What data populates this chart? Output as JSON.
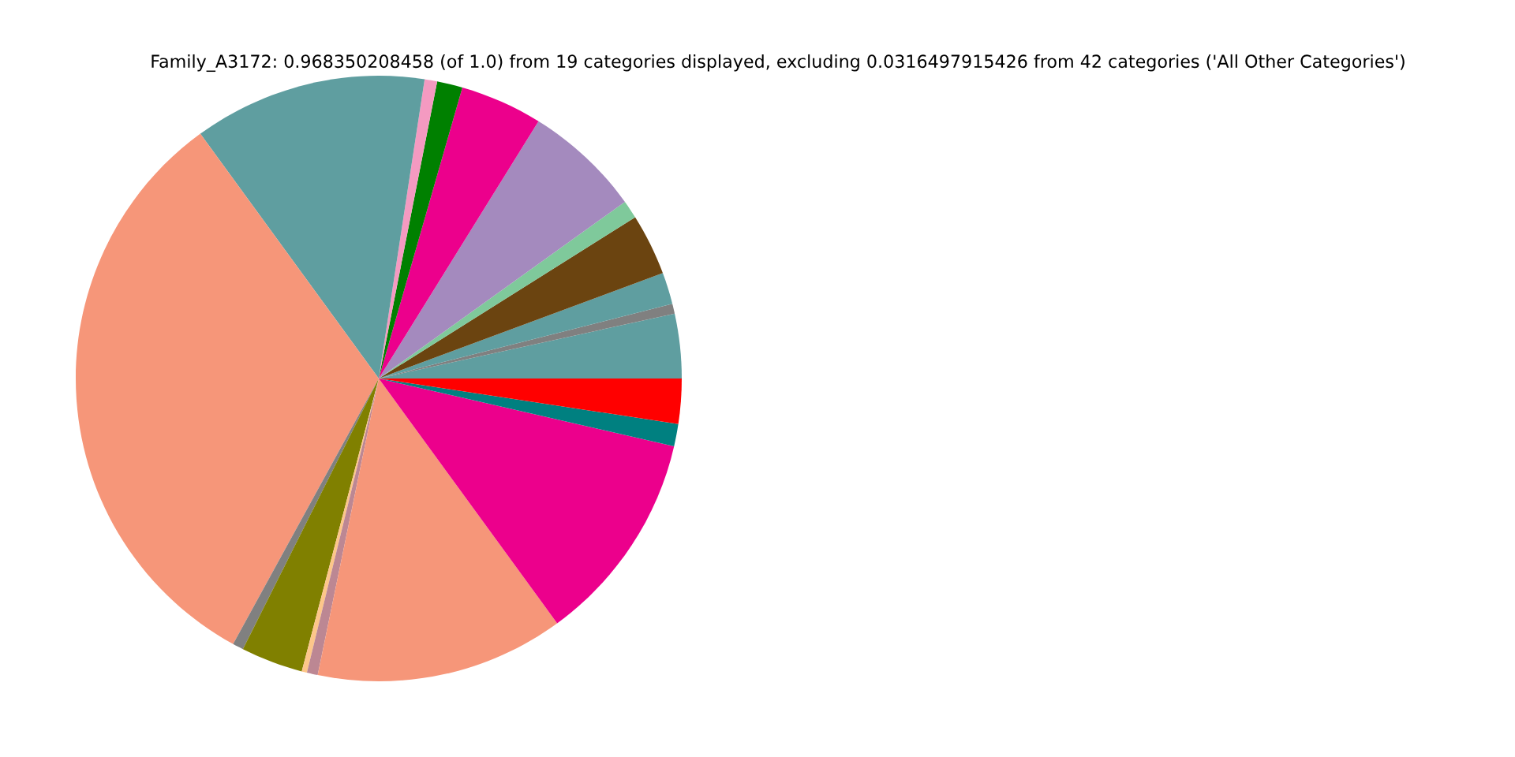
{
  "chart_data": {
    "type": "pie",
    "title": "Family_A3172: 0.968350208458 (of 1.0) from 19 categories displayed, excluding 0.0316497915426 from 42 categories ('All Other Categories')",
    "categories": [
      null,
      null,
      null,
      null,
      null,
      null,
      null,
      null,
      null,
      null,
      null,
      null,
      null,
      null,
      null,
      null,
      null,
      null,
      null
    ],
    "values": [
      3.44,
      0.53,
      1.69,
      3.28,
      0.97,
      6.25,
      4.39,
      1.36,
      0.67,
      12.44,
      32.0,
      0.58,
      3.31,
      0.28,
      0.58,
      13.25,
      11.39,
      1.19,
      2.4
    ],
    "colors": [
      "#5f9ea0",
      "#808080",
      "#5f9ea0",
      "#6b4410",
      "#7fc99b",
      "#a48abe",
      "#ec008c",
      "#008000",
      "#f49ac1",
      "#5f9ea0",
      "#f69679",
      "#808080",
      "#808000",
      "#fdc68a",
      "#bc8793",
      "#f69679",
      "#ec008c",
      "#008080",
      "#ff0000"
    ]
  }
}
